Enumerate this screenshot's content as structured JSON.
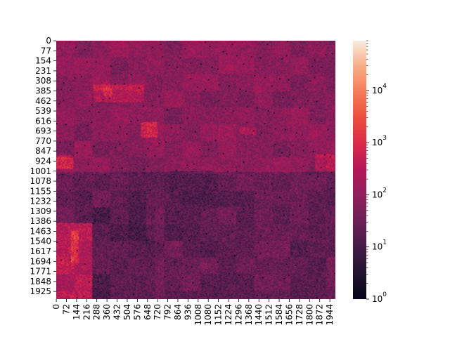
{
  "chart_data": {
    "type": "heatmap",
    "title": "",
    "xlabel": "",
    "ylabel": "",
    "matrix_size": 1984,
    "x_ticks": [
      0,
      72,
      144,
      216,
      288,
      360,
      432,
      504,
      576,
      648,
      720,
      792,
      864,
      936,
      1008,
      1080,
      1152,
      1224,
      1296,
      1368,
      1440,
      1512,
      1584,
      1656,
      1728,
      1800,
      1872,
      1944
    ],
    "x_tick_labels": [
      "0",
      "72",
      "144",
      "216",
      "288",
      "360",
      "432",
      "504",
      "576",
      "648",
      "720",
      "792",
      "864",
      "936",
      "1008",
      "1080",
      "1152",
      "1224",
      "1296",
      "1368",
      "1440",
      "1512",
      "1584",
      "1656",
      "1728",
      "1800",
      "1872",
      "1944"
    ],
    "y_ticks": [
      0,
      77,
      154,
      231,
      308,
      385,
      462,
      539,
      616,
      693,
      770,
      847,
      924,
      1001,
      1078,
      1155,
      1232,
      1309,
      1386,
      1463,
      1540,
      1617,
      1694,
      1771,
      1848,
      1925
    ],
    "y_tick_labels": [
      "0",
      "77",
      "154",
      "231",
      "308",
      "385",
      "462",
      "539",
      "616",
      "693",
      "770",
      "847",
      "924",
      "1001",
      "1078",
      "1155",
      "1232",
      "1309",
      "1386",
      "1463",
      "1540",
      "1617",
      "1694",
      "1771",
      "1848",
      "1925"
    ],
    "colorbar": {
      "scale": "log",
      "range": [
        1,
        90000
      ],
      "ticks": [
        1,
        10,
        100,
        1000,
        10000
      ],
      "tick_labels": [
        "10^0",
        "10^1",
        "10^2",
        "10^3",
        "10^4"
      ],
      "colormap": "rocket"
    },
    "background_level": 80,
    "bright_regions": [
      {
        "x": [
          260,
          620
        ],
        "y": [
          330,
          470
        ],
        "value": 350
      },
      {
        "x": [
          0,
          250
        ],
        "y": [
          1400,
          1984
        ],
        "value": 300
      },
      {
        "x": [
          100,
          160
        ],
        "y": [
          1450,
          1700
        ],
        "value": 1200
      },
      {
        "x": [
          330,
          400
        ],
        "y": [
          360,
          420
        ],
        "value": 900
      },
      {
        "x": [
          600,
          720
        ],
        "y": [
          620,
          740
        ],
        "value": 500
      },
      {
        "x": [
          0,
          120
        ],
        "y": [
          880,
          980
        ],
        "value": 400
      },
      {
        "x": [
          1840,
          1984
        ],
        "y": [
          870,
          1000
        ],
        "value": 300
      },
      {
        "x": [
          1300,
          1420
        ],
        "y": [
          660,
          720
        ],
        "value": 250
      }
    ],
    "dim_regions": [
      {
        "x": [
          0,
          1984
        ],
        "y": [
          1001,
          1984
        ],
        "value": 25
      },
      {
        "x": [
          250,
          700
        ],
        "y": [
          1280,
          1984
        ],
        "value": 15
      },
      {
        "x": [
          800,
          1100
        ],
        "y": [
          1000,
          1250
        ],
        "value": 20
      }
    ]
  }
}
